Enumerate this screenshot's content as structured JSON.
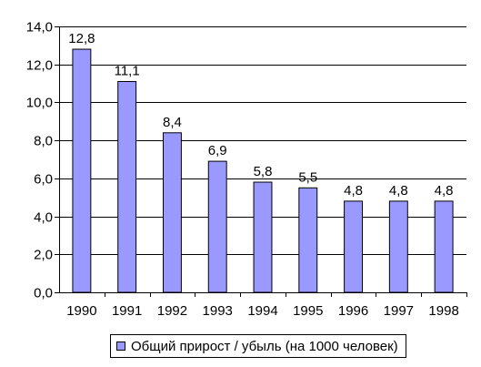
{
  "chart_data": {
    "type": "bar",
    "title": "",
    "xlabel": "",
    "ylabel": "",
    "categories": [
      "1990",
      "1991",
      "1992",
      "1993",
      "1994",
      "1995",
      "1996",
      "1997",
      "1998"
    ],
    "series": [
      {
        "name": "Общий прирост / убыль (на 1000 человек)",
        "values": [
          12.8,
          11.1,
          8.4,
          6.9,
          5.8,
          5.5,
          4.8,
          4.8,
          4.8
        ],
        "data_labels": [
          "12,8",
          "11,1",
          "8,4",
          "6,9",
          "5,8",
          "5,5",
          "4,8",
          "4,8",
          "4,8"
        ],
        "color": "#9999ff"
      }
    ],
    "ylim": [
      0,
      14
    ],
    "y_ticks": [
      0,
      2,
      4,
      6,
      8,
      10,
      12,
      14
    ],
    "y_tick_labels": [
      "0,0",
      "2,0",
      "4,0",
      "6,0",
      "8,0",
      "10,0",
      "12,0",
      "14,0"
    ],
    "grid": true,
    "legend_position": "bottom"
  },
  "legend": {
    "label": "Общий прирост / убыль (на 1000 человек)",
    "color": "#9999ff"
  }
}
